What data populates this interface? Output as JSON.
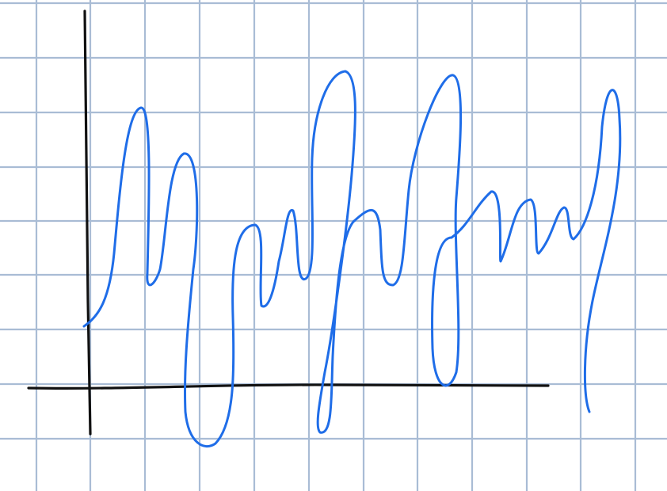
{
  "colors": {
    "paper": "#ffffff",
    "grid": "#a9bcd5",
    "axes": "#111111",
    "stroke": "#1f6de8"
  },
  "sketch": {
    "description_visible_text": "",
    "has_axes": true,
    "has_grid": true,
    "curve_count": 1
  }
}
